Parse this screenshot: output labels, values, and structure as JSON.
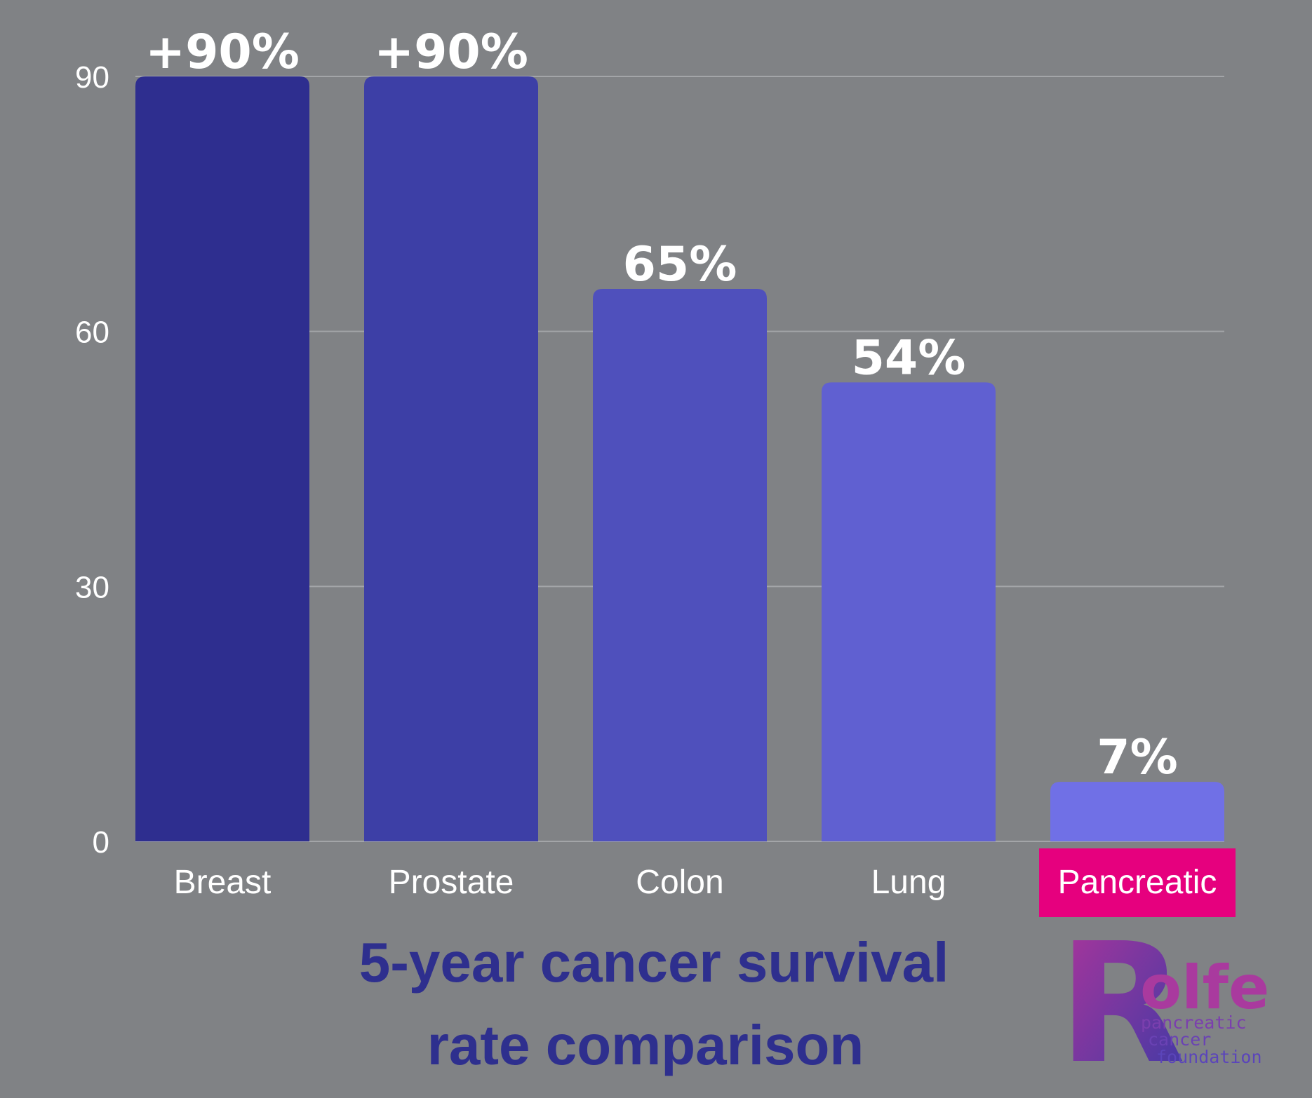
{
  "colors": {
    "background": "#808285",
    "gridline": "#a3a5a8",
    "highlight": "#e6007e",
    "title": "#2e2f8e",
    "label": "#ffffff"
  },
  "chart_data": {
    "type": "bar",
    "title": "5-year cancer survival rate comparison",
    "title_lines": [
      "5-year cancer survival",
      "rate comparison"
    ],
    "xlabel": "",
    "ylabel": "",
    "ylim": [
      0,
      90
    ],
    "yticks": [
      0,
      30,
      60,
      90
    ],
    "grid": true,
    "categories": [
      "Breast",
      "Prostate",
      "Colon",
      "Lung",
      "Pancreatic"
    ],
    "values": [
      90,
      90,
      65,
      54,
      7
    ],
    "data_labels": [
      "+90%",
      "+90%",
      "65%",
      "54%",
      "7%"
    ],
    "bar_colors": [
      "#2e2e8f",
      "#3d3fa6",
      "#4f50bc",
      "#6060d1",
      "#7070e6"
    ],
    "highlighted_category": "Pancreatic"
  },
  "logo": {
    "letter": "R",
    "word": "olfe",
    "tagline": [
      "pancreatic",
      "cancer",
      "foundation"
    ]
  }
}
